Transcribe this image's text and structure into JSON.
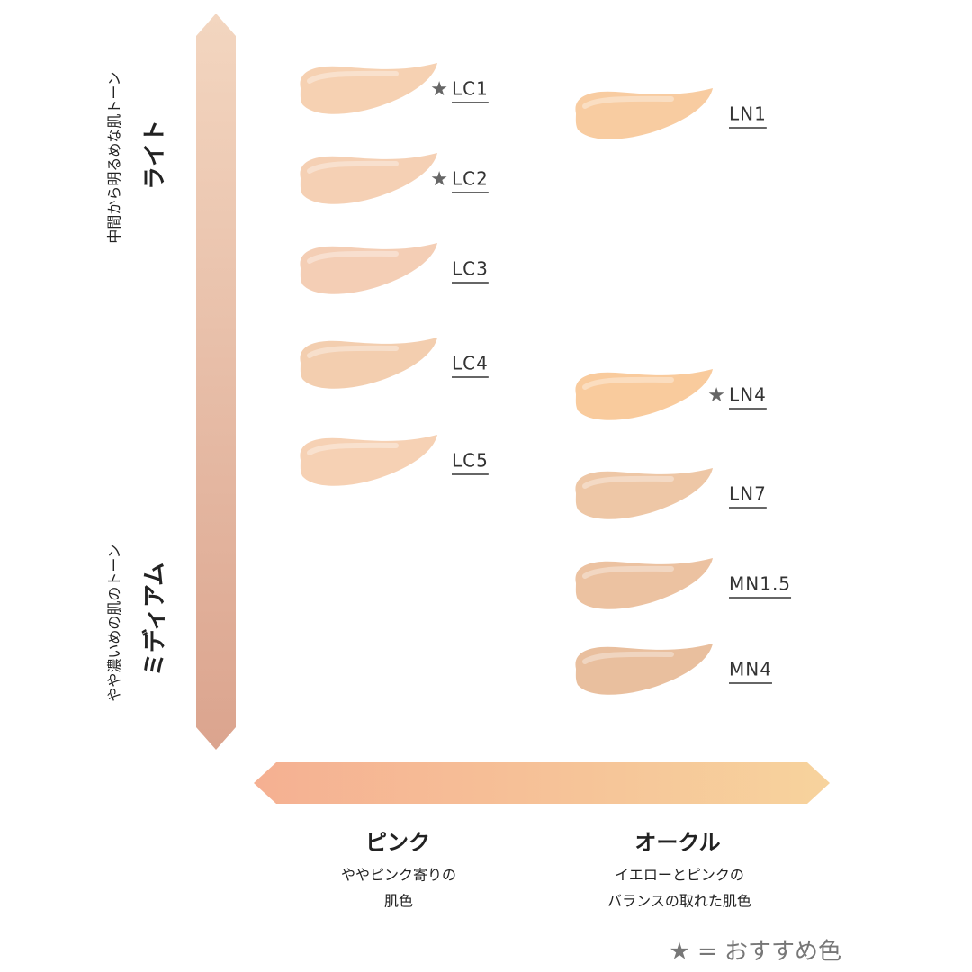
{
  "vertical_axis": {
    "top": {
      "title": "ライト",
      "subtitle": "中間から明るめな肌トーン"
    },
    "bottom": {
      "title": "ミディアム",
      "subtitle": "やや濃いめの肌のトーン"
    }
  },
  "horizontal_axis": {
    "left": {
      "title": "ピンク",
      "description": [
        "ややピンク寄りの",
        "肌色"
      ]
    },
    "right": {
      "title": "オークル",
      "description": [
        "イエローとピンクの",
        "バランスの取れた肌色"
      ]
    }
  },
  "columns": [
    {
      "swatches": [
        {
          "label": "LC1",
          "star": "★",
          "color": "#f5cfae"
        },
        {
          "label": "LC2",
          "star": "★",
          "color": "#f4cdb0"
        },
        {
          "label": "LC3",
          "color": "#f3cbb1"
        },
        {
          "label": "LC4",
          "color": "#f2cbab"
        },
        {
          "label": "LC5",
          "color": "#f5cfb0"
        }
      ]
    },
    {
      "swatches": [
        {
          "label": "LN1",
          "color": "#f8c99c"
        },
        {
          "label": "LN4",
          "star": "★",
          "color": "#f9c898"
        },
        {
          "label": "LN7",
          "color": "#edc4a1"
        },
        {
          "label": "MN1.5",
          "color": "#ebbf9c"
        },
        {
          "label": "MN4",
          "color": "#e8bc99"
        }
      ]
    }
  ],
  "legend": "★ = おすすめ色"
}
